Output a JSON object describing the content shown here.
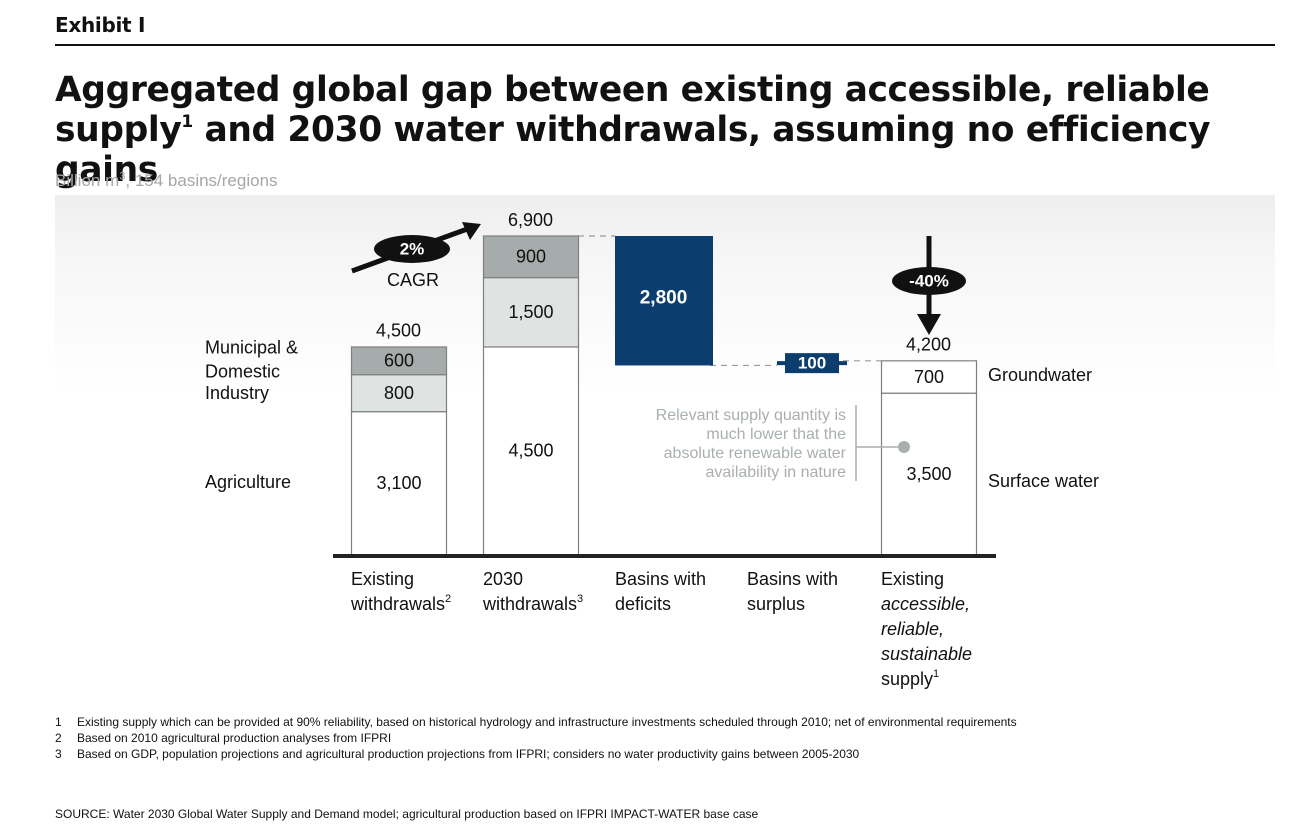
{
  "header": {
    "exhibit": "Exhibit I",
    "title_part1": "Aggregated global gap between existing accessible, reliable",
    "title_part2_a": "supply",
    "title_sup": "1",
    "title_part2_b": " and 2030 water withdrawals, assuming no efficiency gains",
    "subtitle_a": "Billion m",
    "subtitle_sup": "3",
    "subtitle_b": ", 154 basins/regions"
  },
  "colors": {
    "dark_gray": "#a6acab",
    "light_gray": "#dfe3e2",
    "navy": "#0b3d6e",
    "axis": "#222222",
    "bar_outline": "#7f7f7f",
    "annotation_gray": "#a9afae"
  },
  "chart_data": {
    "type": "bar",
    "ylim": [
      0,
      6900
    ],
    "categories": [
      {
        "lines": [
          {
            "text": "Existing"
          },
          {
            "text": "withdrawals",
            "sup": "2"
          }
        ]
      },
      {
        "lines": [
          {
            "text": "2030"
          },
          {
            "text": "withdrawals",
            "sup": "3"
          }
        ]
      },
      {
        "lines": [
          {
            "text": "Basins with"
          },
          {
            "text": "deficits"
          }
        ]
      },
      {
        "lines": [
          {
            "text": "Basins with"
          },
          {
            "text": "surplus"
          }
        ]
      },
      {
        "lines": [
          {
            "text": "Existing"
          },
          {
            "text": "accessible,",
            "italic": true
          },
          {
            "text": "reliable,",
            "italic": true
          },
          {
            "text": "sustainable",
            "italic": true
          },
          {
            "text": "supply",
            "sup": "1"
          }
        ]
      }
    ],
    "bars": [
      {
        "category": 0,
        "total_label": "4,500",
        "segments": [
          {
            "name": "Agriculture",
            "value": 3100,
            "label": "3,100",
            "fill": "white"
          },
          {
            "name": "Industry",
            "value": 800,
            "label": "800",
            "fill": "light"
          },
          {
            "name": "Municipal & Domestic",
            "value": 600,
            "label": "600",
            "fill": "dark"
          }
        ]
      },
      {
        "category": 1,
        "total_label": "6,900",
        "segments": [
          {
            "name": "Agriculture",
            "value": 4500,
            "label": "4,500",
            "fill": "white"
          },
          {
            "name": "Industry",
            "value": 1500,
            "label": "1,500",
            "fill": "light"
          },
          {
            "name": "Municipal & Domestic",
            "value": 900,
            "label": "900",
            "fill": "dark"
          }
        ]
      },
      {
        "category": 2,
        "floating": true,
        "from": 4100,
        "to": 6900,
        "value": 2800,
        "label": "2,800",
        "fill": "navy"
      },
      {
        "category": 3,
        "floating": true,
        "from": 4100,
        "to": 4200,
        "value": 100,
        "label": "100",
        "fill": "navy"
      },
      {
        "category": 4,
        "total_label": "4,200",
        "segments": [
          {
            "name": "Surface water",
            "value": 3500,
            "label": "3,500",
            "fill": "white"
          },
          {
            "name": "Groundwater",
            "value": 700,
            "label": "700",
            "fill": "white"
          }
        ]
      }
    ],
    "left_labels": [
      {
        "lines": [
          "Municipal &",
          "Domestic"
        ],
        "value": 4200
      },
      {
        "lines": [
          "Industry"
        ],
        "value": 3475
      },
      {
        "lines": [
          "Agriculture"
        ],
        "value": 1550
      }
    ],
    "right_labels": [
      {
        "text": "Groundwater",
        "value": 3850
      },
      {
        "text": "Surface water",
        "value": 1550
      }
    ],
    "annotations": {
      "growth": {
        "badge": "2%",
        "label": "CAGR"
      },
      "reduction": {
        "badge": "-40%"
      },
      "note": [
        "Relevant supply quantity is",
        "much lower that the",
        "absolute renewable water",
        "availability in nature"
      ]
    }
  },
  "footnotes": [
    {
      "num": "1",
      "text": "Existing supply which can be provided at 90% reliability, based on historical hydrology and infrastructure investments scheduled through 2010; net of environmental requirements"
    },
    {
      "num": "2",
      "text": "Based on 2010 agricultural production analyses from IFPRI"
    },
    {
      "num": "3",
      "text": "Based on GDP, population projections and agricultural production projections from IFPRI; considers no water productivity gains between 2005-2030"
    }
  ],
  "source": "SOURCE: Water 2030 Global Water Supply and Demand model; agricultural production based on IFPRI IMPACT-WATER base case"
}
